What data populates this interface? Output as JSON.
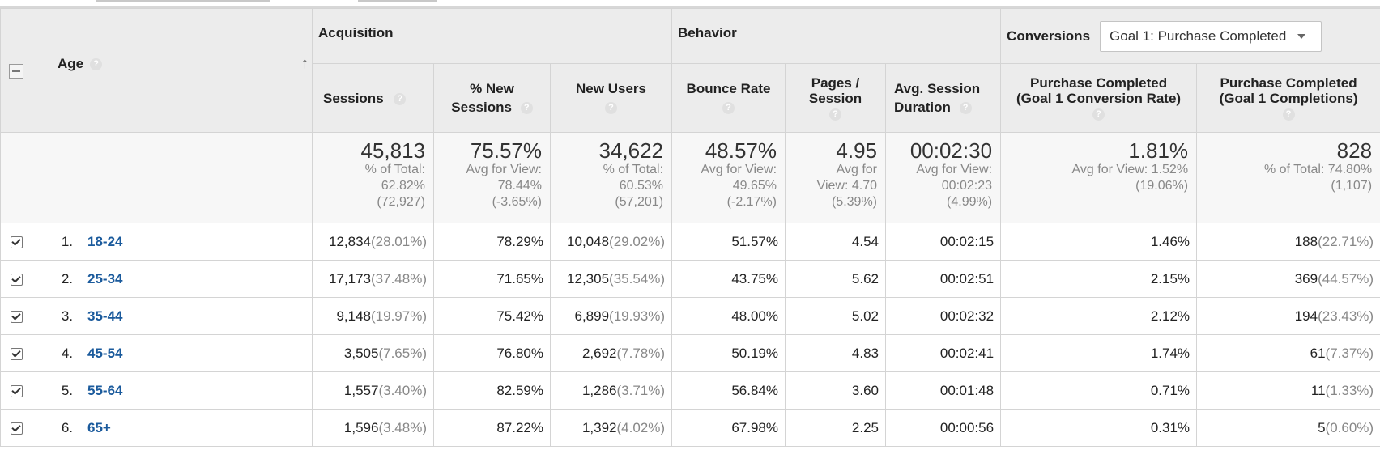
{
  "groups": {
    "acquisition": "Acquisition",
    "behavior": "Behavior",
    "conversions": "Conversions",
    "goal_selector": "Goal 1: Purchase Completed"
  },
  "dimension_header": "Age",
  "columns": {
    "sessions": "Sessions",
    "new_sessions": [
      "% New",
      "Sessions"
    ],
    "new_users": "New Users",
    "bounce_rate": "Bounce Rate",
    "pages_session": [
      "Pages /",
      "Session"
    ],
    "avg_duration": [
      "Avg. Session",
      "Duration"
    ],
    "conv_rate": [
      "Purchase Completed",
      "(Goal 1 Conversion Rate)"
    ],
    "completions": [
      "Purchase Completed",
      "(Goal 1 Completions)"
    ]
  },
  "help_icon": "?",
  "totals": {
    "sessions": {
      "value": "45,813",
      "lines": [
        "% of Total:",
        "62.82%",
        "(72,927)"
      ]
    },
    "new_sessions": {
      "value": "75.57%",
      "lines": [
        "Avg for View:",
        "78.44%",
        "(-3.65%)"
      ]
    },
    "new_users": {
      "value": "34,622",
      "lines": [
        "% of Total:",
        "60.53%",
        "(57,201)"
      ]
    },
    "bounce_rate": {
      "value": "48.57%",
      "lines": [
        "Avg for View:",
        "49.65%",
        "(-2.17%)"
      ]
    },
    "pages_session": {
      "value": "4.95",
      "lines": [
        "Avg for",
        "View: 4.70",
        "(5.39%)"
      ]
    },
    "avg_duration": {
      "value": "00:02:30",
      "lines": [
        "Avg for View:",
        "00:02:23",
        "(4.99%)"
      ]
    },
    "conv_rate": {
      "value": "1.81%",
      "lines": [
        "Avg for View: 1.52%",
        "(19.06%)"
      ]
    },
    "completions": {
      "value": "828",
      "lines": [
        "% of Total: 74.80%",
        "(1,107)"
      ]
    }
  },
  "rows": [
    {
      "index": "1.",
      "age": "18-24",
      "sessions": "12,834",
      "sessions_pct": "(28.01%)",
      "new_sessions": "78.29%",
      "new_users": "10,048",
      "new_users_pct": "(29.02%)",
      "bounce_rate": "51.57%",
      "pages_session": "4.54",
      "avg_duration": "00:02:15",
      "conv_rate": "1.46%",
      "completions": "188",
      "completions_pct": "(22.71%)"
    },
    {
      "index": "2.",
      "age": "25-34",
      "sessions": "17,173",
      "sessions_pct": "(37.48%)",
      "new_sessions": "71.65%",
      "new_users": "12,305",
      "new_users_pct": "(35.54%)",
      "bounce_rate": "43.75%",
      "pages_session": "5.62",
      "avg_duration": "00:02:51",
      "conv_rate": "2.15%",
      "completions": "369",
      "completions_pct": "(44.57%)"
    },
    {
      "index": "3.",
      "age": "35-44",
      "sessions": "9,148",
      "sessions_pct": "(19.97%)",
      "new_sessions": "75.42%",
      "new_users": "6,899",
      "new_users_pct": "(19.93%)",
      "bounce_rate": "48.00%",
      "pages_session": "5.02",
      "avg_duration": "00:02:32",
      "conv_rate": "2.12%",
      "completions": "194",
      "completions_pct": "(23.43%)"
    },
    {
      "index": "4.",
      "age": "45-54",
      "sessions": "3,505",
      "sessions_pct": "(7.65%)",
      "new_sessions": "76.80%",
      "new_users": "2,692",
      "new_users_pct": "(7.78%)",
      "bounce_rate": "50.19%",
      "pages_session": "4.83",
      "avg_duration": "00:02:41",
      "conv_rate": "1.74%",
      "completions": "61",
      "completions_pct": "(7.37%)"
    },
    {
      "index": "5.",
      "age": "55-64",
      "sessions": "1,557",
      "sessions_pct": "(3.40%)",
      "new_sessions": "82.59%",
      "new_users": "1,286",
      "new_users_pct": "(3.71%)",
      "bounce_rate": "56.84%",
      "pages_session": "3.60",
      "avg_duration": "00:01:48",
      "conv_rate": "0.71%",
      "completions": "11",
      "completions_pct": "(1.33%)"
    },
    {
      "index": "6.",
      "age": "65+",
      "sessions": "1,596",
      "sessions_pct": "(3.48%)",
      "new_sessions": "87.22%",
      "new_users": "1,392",
      "new_users_pct": "(4.02%)",
      "bounce_rate": "67.98%",
      "pages_session": "2.25",
      "avg_duration": "00:00:56",
      "conv_rate": "0.31%",
      "completions": "5",
      "completions_pct": "(0.60%)"
    }
  ],
  "colors": {
    "link": "#1a5a9c",
    "muted": "#888888",
    "header_bg": "#ececec"
  }
}
